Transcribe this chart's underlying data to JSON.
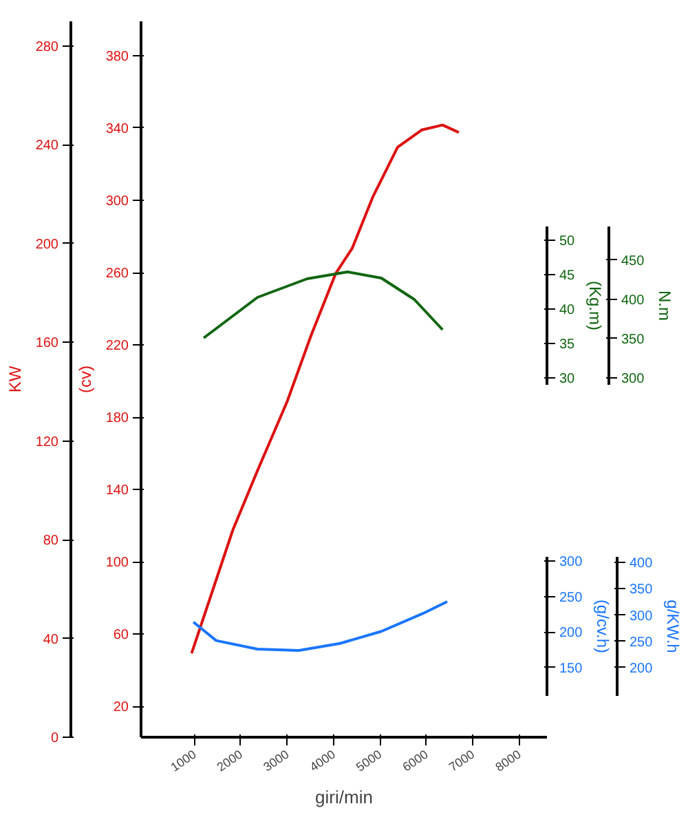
{
  "chart_data": [
    {
      "type": "line",
      "xlabel": "giri/min",
      "ylabel": "KW",
      "y2label": "(cv)",
      "xlim": [
        -150,
        8600
      ],
      "xticks": [
        1000,
        2000,
        3000,
        4000,
        5000,
        6000,
        7000,
        8000
      ],
      "ylim": [
        0,
        290
      ],
      "yticks": [
        0,
        40,
        80,
        120,
        160,
        200,
        240,
        280
      ],
      "y2lim": [
        3,
        399
      ],
      "y2ticks": [
        20,
        60,
        100,
        140,
        180,
        220,
        260,
        300,
        340,
        380
      ],
      "grid": false,
      "marker": "none",
      "line_style": "solid",
      "series": [
        {
          "color": "#dd1111",
          "x": [
            940,
            1830,
            2360,
            3000,
            3520,
            4050,
            4400,
            4850,
            5380,
            5900,
            6350,
            6700
          ],
          "values": [
            34,
            84,
            108,
            136,
            163,
            188,
            198,
            219,
            239,
            246,
            248,
            245
          ]
        }
      ]
    },
    {
      "type": "line",
      "ylabel": "(Kg.m)",
      "y2label": "N.m",
      "xlim": [
        -150,
        8600
      ],
      "tick_labels": "y",
      "ylim": [
        29,
        52
      ],
      "yticks": [
        30,
        35,
        40,
        45,
        50
      ],
      "y2lim": [
        291,
        493
      ],
      "y2ticks": [
        300,
        350,
        400,
        450
      ],
      "grid": false,
      "marker": "none",
      "line_style": "solid",
      "series": [
        {
          "color": "#116611",
          "x": [
            1200,
            2360,
            3430,
            4300,
            5030,
            5740,
            6350
          ],
          "values": [
            35.8,
            41.7,
            44.4,
            45.4,
            44.5,
            41.4,
            37.0
          ]
        }
      ]
    },
    {
      "type": "line",
      "ylabel": "(g/cv.h)",
      "y2label": "g/KW.h",
      "xlim": [
        -150,
        8600
      ],
      "tick_labels": "y",
      "ylim": [
        110,
        306
      ],
      "yticks": [
        150,
        200,
        250,
        300
      ],
      "y2lim": [
        146,
        411
      ],
      "y2ticks": [
        200,
        250,
        300,
        350,
        400
      ],
      "grid": false,
      "marker": "none",
      "line_style": "solid",
      "series": [
        {
          "color": "#1a75ff",
          "x": [
            980,
            1470,
            2360,
            3250,
            4140,
            5030,
            5920,
            6450
          ],
          "values": [
            214,
            188,
            176,
            174,
            184,
            201,
            226,
            243
          ]
        }
      ]
    }
  ]
}
